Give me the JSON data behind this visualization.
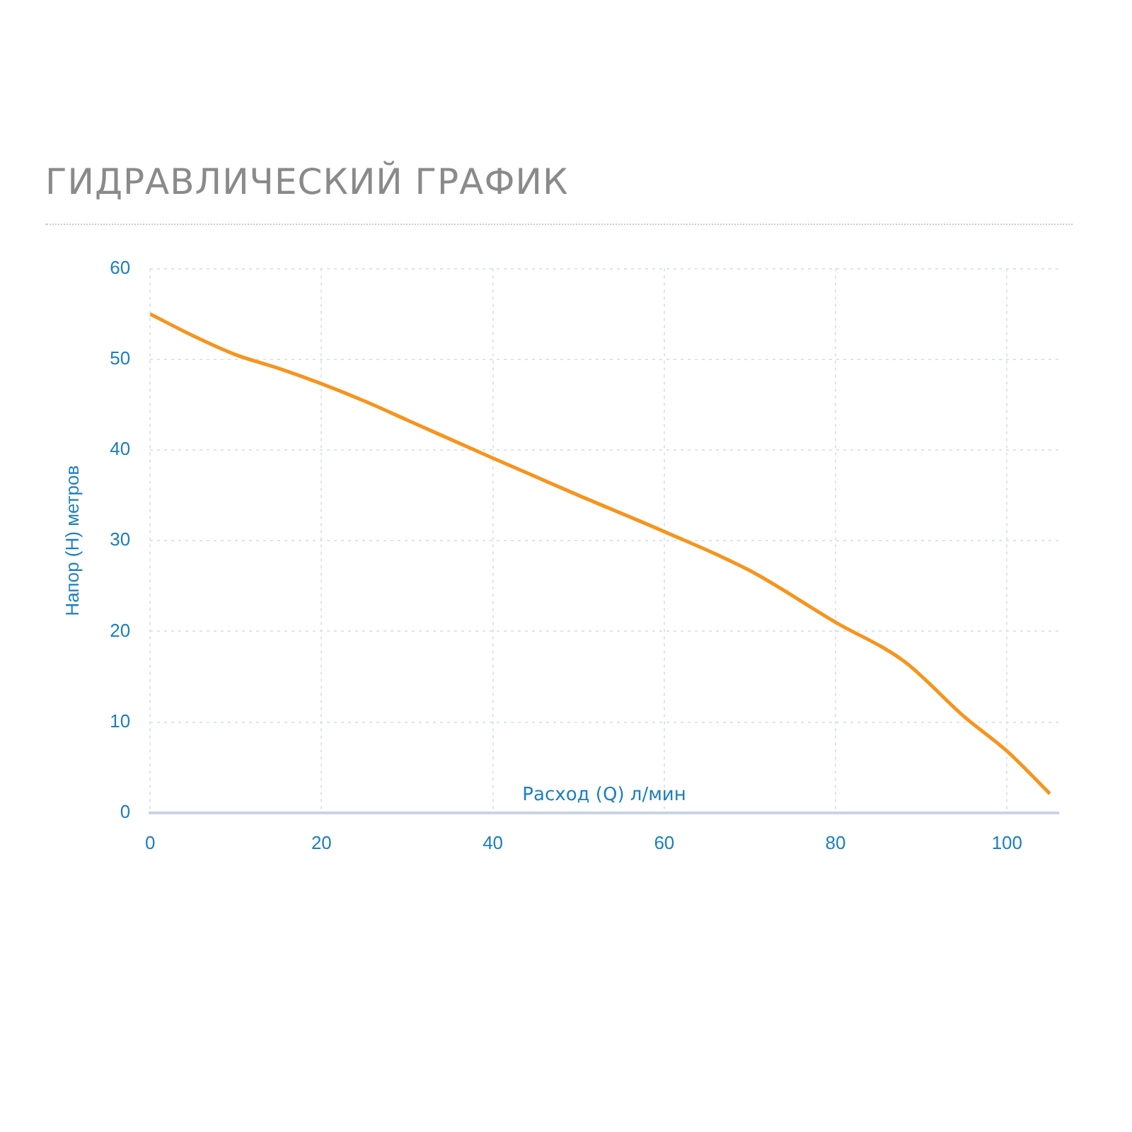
{
  "chart_data": {
    "type": "line",
    "title": "ГИДРАВЛИЧЕСКИЙ ГРАФИК",
    "xlabel": "Расход (Q) л/мин",
    "ylabel": "Напор (H) метров",
    "x": [
      0,
      5,
      10,
      15,
      20,
      25,
      30,
      40,
      50,
      60,
      70,
      80,
      88,
      95,
      100,
      105
    ],
    "series": [
      {
        "color": "#f7941d",
        "values": [
          55,
          52.6,
          50.5,
          49,
          47.3,
          45.4,
          43.3,
          39.1,
          35,
          31,
          26.7,
          21,
          16.7,
          10.6,
          6.8,
          2.1
        ]
      }
    ],
    "xlim": [
      0,
      106
    ],
    "xticks": [
      0,
      20,
      40,
      60,
      80,
      100
    ],
    "ylim": [
      0,
      60
    ],
    "yticks": [
      0,
      10,
      20,
      30,
      40,
      50,
      60
    ],
    "grid": true,
    "marker": "none",
    "line_style": "solid"
  }
}
